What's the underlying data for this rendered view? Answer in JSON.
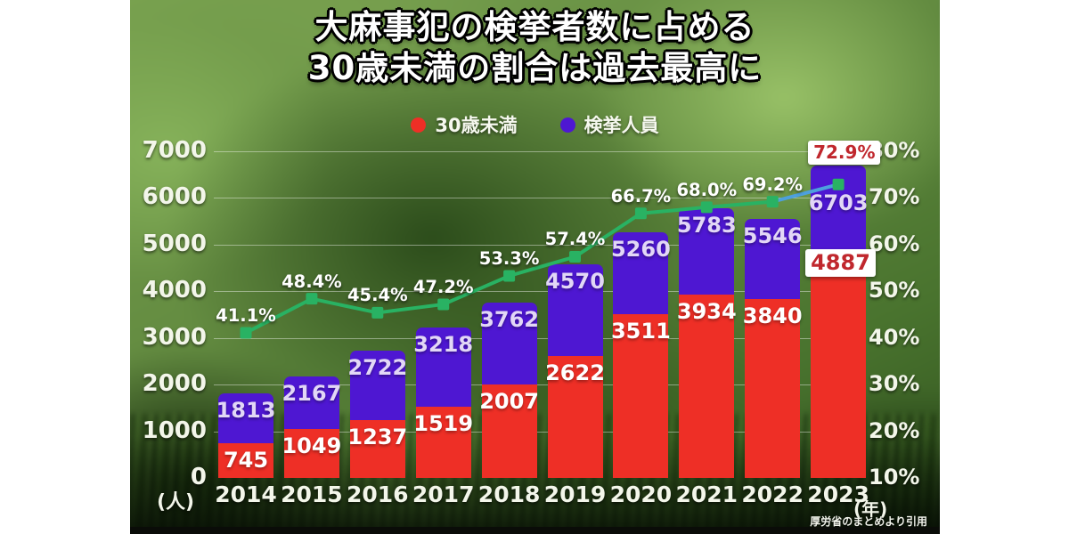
{
  "title": {
    "line1": "大麻事犯の検挙者数に占める",
    "line2": "30歳未満の割合は過去最高に"
  },
  "legend": [
    {
      "label": "30歳未満",
      "color": "#ee2f26"
    },
    {
      "label": "検挙人員",
      "color": "#4e17d2"
    }
  ],
  "axes": {
    "left_unit": "(人)",
    "left_ticks": [
      "0",
      "1000",
      "2000",
      "3000",
      "4000",
      "5000",
      "6000",
      "7000"
    ],
    "right_ticks": [
      "10%",
      "20%",
      "30%",
      "40%",
      "50%",
      "60%",
      "70%",
      "80%"
    ],
    "x_unit": "(年)"
  },
  "source": "厚労省のまとめより引用",
  "chart_data": {
    "type": "combo-stacked-bar-line",
    "categories": [
      "2014",
      "2015",
      "2016",
      "2017",
      "2018",
      "2019",
      "2020",
      "2021",
      "2022",
      "2023"
    ],
    "series": [
      {
        "name": "30歳未満",
        "type": "bar",
        "color": "#ee2f26",
        "values": [
          745,
          1049,
          1237,
          1519,
          2007,
          2622,
          3511,
          3934,
          3840,
          4887
        ]
      },
      {
        "name": "検挙人員",
        "type": "bar-total",
        "color": "#4e17d2",
        "values": [
          1813,
          2167,
          2722,
          3218,
          3762,
          4570,
          5260,
          5783,
          5546,
          6703
        ]
      },
      {
        "name": "30歳未満の割合",
        "type": "line",
        "color": "#29b263",
        "last_segment_color": "#4da0dd",
        "marker_color": "#29b263",
        "values": [
          41.1,
          48.4,
          45.4,
          47.2,
          53.3,
          57.4,
          66.7,
          68.0,
          69.2,
          72.9
        ]
      }
    ],
    "percent_labels": [
      "41.1%",
      "48.4%",
      "45.4%",
      "47.2%",
      "53.3%",
      "57.4%",
      "66.7%",
      "68.0%",
      "69.2%",
      "72.9%"
    ],
    "left_axis_range": [
      0,
      7000
    ],
    "right_axis_range": [
      10,
      80
    ],
    "grid": true,
    "legend_position": "top",
    "highlight_last": true,
    "highlight_text_color": "#c0272d"
  }
}
